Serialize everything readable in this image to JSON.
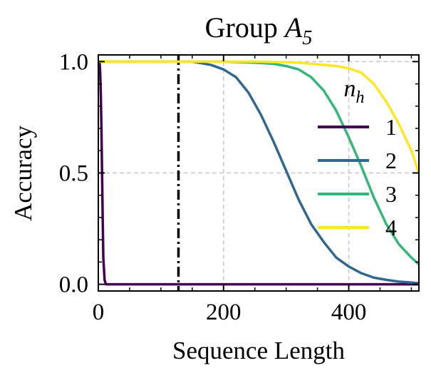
{
  "chart_data": {
    "type": "line",
    "title_text": "Group ",
    "title_math": "A",
    "title_sub": "5",
    "xlabel": "Sequence Length",
    "ylabel": "Accuracy",
    "xlim": [
      0,
      512
    ],
    "ylim": [
      -0.03,
      1.03
    ],
    "xticks": [
      0,
      200,
      400
    ],
    "xtick_labels": [
      "0",
      "200",
      "400"
    ],
    "yticks": [
      0.0,
      0.5,
      1.0
    ],
    "ytick_labels": [
      "0.0",
      "0.5",
      "1.0"
    ],
    "grid": true,
    "vline_x": 128,
    "legend": {
      "title_main": "n",
      "title_sub": "h",
      "placement": "right",
      "entries": [
        "1",
        "2",
        "3",
        "4"
      ]
    },
    "series": [
      {
        "name": "1",
        "color": "#440154",
        "x": [
          0,
          2,
          3,
          4,
          5,
          6,
          7,
          8,
          10,
          12,
          512
        ],
        "y": [
          1.0,
          1.0,
          0.95,
          0.85,
          0.7,
          0.5,
          0.3,
          0.12,
          0.02,
          0.0,
          0.0
        ]
      },
      {
        "name": "2",
        "color": "#31688e",
        "x": [
          0,
          100,
          150,
          160,
          180,
          200,
          220,
          240,
          260,
          280,
          300,
          320,
          340,
          360,
          380,
          400,
          420,
          440,
          460,
          480,
          500,
          512
        ],
        "y": [
          1.0,
          1.0,
          1.0,
          0.995,
          0.985,
          0.965,
          0.93,
          0.86,
          0.76,
          0.64,
          0.51,
          0.38,
          0.27,
          0.19,
          0.12,
          0.08,
          0.05,
          0.03,
          0.02,
          0.012,
          0.008,
          0.005
        ]
      },
      {
        "name": "3",
        "color": "#35b779",
        "x": [
          0,
          200,
          250,
          280,
          300,
          320,
          340,
          360,
          380,
          400,
          420,
          440,
          460,
          480,
          500,
          512
        ],
        "y": [
          1.0,
          1.0,
          0.995,
          0.99,
          0.98,
          0.965,
          0.93,
          0.87,
          0.78,
          0.66,
          0.53,
          0.39,
          0.27,
          0.18,
          0.12,
          0.09
        ]
      },
      {
        "name": "4",
        "color": "#fde725",
        "x": [
          0,
          250,
          300,
          320,
          340,
          360,
          380,
          400,
          420,
          440,
          460,
          480,
          500,
          512
        ],
        "y": [
          1.0,
          1.0,
          0.997,
          0.995,
          0.99,
          0.985,
          0.98,
          0.97,
          0.95,
          0.9,
          0.82,
          0.72,
          0.6,
          0.5
        ]
      }
    ]
  }
}
